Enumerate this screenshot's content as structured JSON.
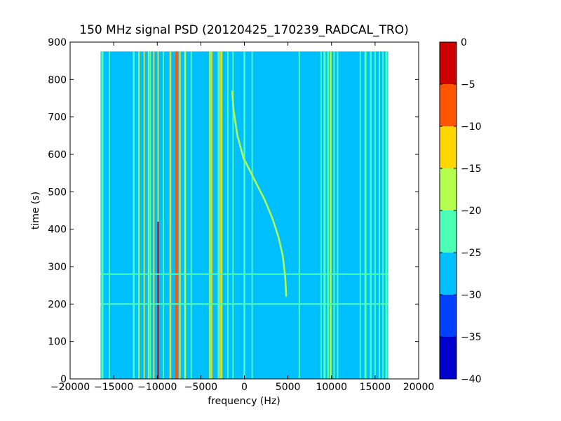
{
  "chart_data": {
    "type": "heatmap",
    "title": "150 MHz signal PSD (20120425_170239_RADCAL_TRO)",
    "xlabel": "frequency (Hz)",
    "ylabel": "time (s)",
    "xlim": [
      -20000,
      20000
    ],
    "ylim": [
      0,
      900
    ],
    "xticks": [
      -20000,
      -15000,
      -10000,
      -5000,
      0,
      5000,
      10000,
      15000,
      20000
    ],
    "yticks": [
      0,
      100,
      200,
      300,
      400,
      500,
      600,
      700,
      800,
      900
    ],
    "data_extent": {
      "x": [
        -16500,
        16500
      ],
      "y": [
        0,
        875
      ]
    },
    "background_level": -27.5,
    "colorbar": {
      "ticks": [
        0,
        -5,
        -10,
        -15,
        -20,
        -25,
        -30,
        -35,
        -40
      ],
      "levels": [
        {
          "range": [
            -40,
            -35
          ],
          "color": "#0000cd"
        },
        {
          "range": [
            -35,
            -30
          ],
          "color": "#0040ff"
        },
        {
          "range": [
            -30,
            -25
          ],
          "color": "#00bfff"
        },
        {
          "range": [
            -25,
            -20
          ],
          "color": "#4dffb4"
        },
        {
          "range": [
            -20,
            -15
          ],
          "color": "#b4ff4d"
        },
        {
          "range": [
            -15,
            -10
          ],
          "color": "#ffd600"
        },
        {
          "range": [
            -10,
            -5
          ],
          "color": "#ff5500"
        },
        {
          "range": [
            -5,
            0
          ],
          "color": "#cc0000"
        }
      ]
    },
    "vertical_lines": [
      {
        "freq": -16300,
        "level": -22.5,
        "width_hz": 250
      },
      {
        "freq": -15500,
        "level": -22.5,
        "width_hz": 150
      },
      {
        "freq": -12700,
        "level": -22.5,
        "width_hz": 200
      },
      {
        "freq": -12100,
        "level": -17.5,
        "width_hz": 150
      },
      {
        "freq": -11500,
        "level": -12.5,
        "width_hz": 150
      },
      {
        "freq": -11000,
        "level": -17.5,
        "width_hz": 150
      },
      {
        "freq": -10800,
        "level": -22.5,
        "width_hz": 150
      },
      {
        "freq": -10400,
        "level": -12.5,
        "width_hz": 150
      },
      {
        "freq": -9900,
        "level": -2.5,
        "width_hz": 170,
        "y_range": [
          0,
          420
        ]
      },
      {
        "freq": -9900,
        "level": -12.5,
        "width_hz": 150,
        "y_range": [
          420,
          875
        ]
      },
      {
        "freq": -9300,
        "level": -22.5,
        "width_hz": 150
      },
      {
        "freq": -8500,
        "level": -12.5,
        "width_hz": 200
      },
      {
        "freq": -7800,
        "level": -7.5,
        "width_hz": 250
      },
      {
        "freq": -7400,
        "level": -12.5,
        "width_hz": 200
      },
      {
        "freq": -6800,
        "level": -17.5,
        "width_hz": 200
      },
      {
        "freq": -6100,
        "level": -22.5,
        "width_hz": 150
      },
      {
        "freq": -3950,
        "level": -17.5,
        "width_hz": 200
      },
      {
        "freq": -3750,
        "level": -12.5,
        "width_hz": 150
      },
      {
        "freq": -3000,
        "level": -22.5,
        "width_hz": 150
      },
      {
        "freq": -2800,
        "level": -12.5,
        "width_hz": 180
      },
      {
        "freq": -2600,
        "level": -17.5,
        "width_hz": 150
      },
      {
        "freq": -1900,
        "level": -22.5,
        "width_hz": 150
      },
      {
        "freq": -1300,
        "level": -22.5,
        "width_hz": 150
      },
      {
        "freq": 0,
        "level": -22.5,
        "width_hz": 200
      },
      {
        "freq": 900,
        "level": -22.5,
        "width_hz": 150
      },
      {
        "freq": 6300,
        "level": -22.5,
        "width_hz": 150
      },
      {
        "freq": 8800,
        "level": -22.5,
        "width_hz": 150
      },
      {
        "freq": 9200,
        "level": -22.5,
        "width_hz": 250
      },
      {
        "freq": 9600,
        "level": -22.5,
        "width_hz": 200
      },
      {
        "freq": 9900,
        "level": -17.5,
        "width_hz": 200
      },
      {
        "freq": 10300,
        "level": -22.5,
        "width_hz": 150
      },
      {
        "freq": 10700,
        "level": -22.5,
        "width_hz": 150
      },
      {
        "freq": 13300,
        "level": -22.5,
        "width_hz": 150
      },
      {
        "freq": 13900,
        "level": -22.5,
        "width_hz": 250
      },
      {
        "freq": 14500,
        "level": -22.5,
        "width_hz": 200
      },
      {
        "freq": 15000,
        "level": -22.5,
        "width_hz": 150
      },
      {
        "freq": 15500,
        "level": -22.5,
        "width_hz": 150
      },
      {
        "freq": 15900,
        "level": -22.5,
        "width_hz": 150
      },
      {
        "freq": 16300,
        "level": -22.5,
        "width_hz": 250
      }
    ],
    "horizontal_lines": [
      {
        "time": 200,
        "level": -22.5,
        "freq_range": [
          -16500,
          16500
        ]
      },
      {
        "time": 280,
        "level": -22.5,
        "freq_range": [
          -16500,
          16500
        ]
      }
    ],
    "chirp": {
      "level": -17.5,
      "points": [
        [
          4800,
          220
        ],
        [
          4700,
          270
        ],
        [
          4400,
          330
        ],
        [
          3900,
          380
        ],
        [
          3200,
          430
        ],
        [
          2300,
          480
        ],
        [
          1200,
          530
        ],
        [
          -100,
          590
        ],
        [
          -800,
          650
        ],
        [
          -1250,
          720
        ],
        [
          -1400,
          770
        ]
      ]
    }
  }
}
